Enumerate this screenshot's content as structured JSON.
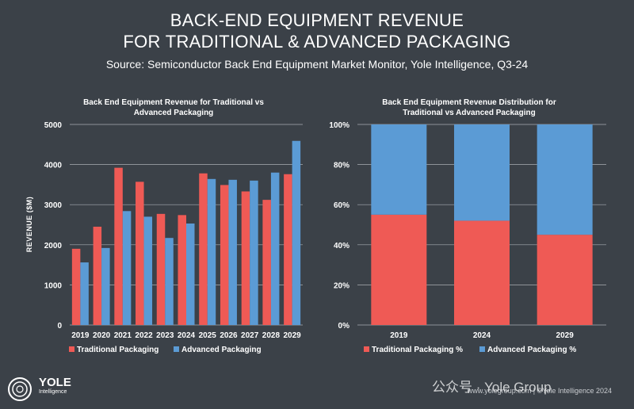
{
  "header": {
    "title_line1": "BACK-END EQUIPMENT REVENUE",
    "title_line2": "FOR TRADITIONAL & ADVANCED PACKAGING",
    "source": "Source: Semiconductor Back End Equipment Market Monitor, Yole Intelligence, Q3-24"
  },
  "colors": {
    "traditional": "#ef5a55",
    "advanced": "#5b9bd5",
    "background": "#3b4148",
    "grid": "#a9adb2"
  },
  "chart_data": [
    {
      "type": "bar",
      "title_line1": "Back End Equipment Revenue for Traditional vs",
      "title_line2": "Advanced Packaging",
      "xlabel": "",
      "ylabel": "REVENUE ($M)",
      "ylim": [
        0,
        5000
      ],
      "yticks": [
        "0",
        "1000",
        "2000",
        "3000",
        "4000",
        "5000"
      ],
      "grid": true,
      "legend": "bottom",
      "categories": [
        "2019",
        "2020",
        "2021",
        "2022",
        "2023",
        "2024",
        "2025",
        "2026",
        "2027",
        "2028",
        "2029"
      ],
      "series": [
        {
          "name": "Traditional Packaging",
          "values": [
            1900,
            2450,
            3920,
            3570,
            2770,
            2740,
            3780,
            3490,
            3330,
            3120,
            3760
          ]
        },
        {
          "name": "Advanced Packaging",
          "values": [
            1560,
            1920,
            2840,
            2700,
            2170,
            2530,
            3640,
            3620,
            3600,
            3800,
            4590
          ]
        }
      ]
    },
    {
      "type": "bar",
      "stacked": true,
      "title_line1": "Back End Equipment Revenue Distribution for",
      "title_line2": "Traditional vs Advanced Packaging",
      "xlabel": "",
      "ylabel": "",
      "ylim": [
        0,
        100
      ],
      "yticks": [
        "0%",
        "20%",
        "40%",
        "60%",
        "80%",
        "100%"
      ],
      "grid": true,
      "legend": "bottom",
      "categories": [
        "2019",
        "2024",
        "2029"
      ],
      "series": [
        {
          "name": "Traditional Packaging %",
          "values": [
            55,
            52,
            45
          ]
        },
        {
          "name": "Advanced Packaging %",
          "values": [
            45,
            48,
            55
          ]
        }
      ]
    }
  ],
  "footer": {
    "logo_text": "YOLE",
    "logo_sub": "Intelligence",
    "credit": "www.yolegroup.com | ©Yole Intelligence 2024",
    "watermark": "公众号 · Yole Group"
  }
}
